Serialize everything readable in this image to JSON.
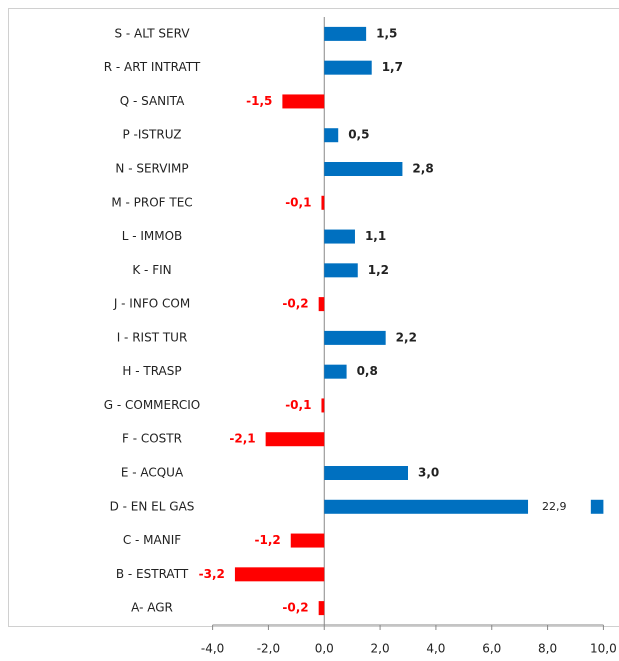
{
  "chart_data": {
    "type": "hbar",
    "categories": [
      "S - ALT SERV",
      "R - ART INTRATT",
      "Q - SANITA",
      "P -ISTRUZ",
      "N - SERVIMP",
      "M - PROF TEC",
      "L - IMMOB",
      "K - FIN",
      "J - INFO COM",
      "I - RIST TUR",
      "H - TRASP",
      "G - COMMERCIO",
      "F - COSTR",
      "E - ACQUA",
      "D - EN EL GAS",
      "C - MANIF",
      "B - ESTRATT",
      "A- AGR"
    ],
    "values": [
      1.5,
      1.7,
      -1.5,
      0.5,
      2.8,
      -0.1,
      1.1,
      1.2,
      -0.2,
      2.2,
      0.8,
      -0.1,
      -2.1,
      3.0,
      22.9,
      -1.2,
      -3.2,
      -0.2
    ],
    "value_labels": [
      "1,5",
      "1,7",
      "-1,5",
      "0,5",
      "2,8",
      "-0,1",
      "1,1",
      "1,2",
      "-0,2",
      "2,2",
      "0,8",
      "-0,1",
      "-2,1",
      "3,0",
      "22,9",
      "-1,2",
      "-3,2",
      "-0,2"
    ],
    "positive_color": "#0070c0",
    "negative_color": "#ff0000",
    "xlim": [
      -4,
      10
    ],
    "xticks": [
      {
        "value": -4,
        "label": "-4,0"
      },
      {
        "value": -2,
        "label": "-2,0"
      },
      {
        "value": 0,
        "label": "0,0"
      },
      {
        "value": 2,
        "label": "2,0"
      },
      {
        "value": 4,
        "label": "4,0"
      },
      {
        "value": 6,
        "label": "6,0"
      },
      {
        "value": 8,
        "label": "8,0"
      },
      {
        "value": 10,
        "label": "10,0"
      }
    ]
  }
}
